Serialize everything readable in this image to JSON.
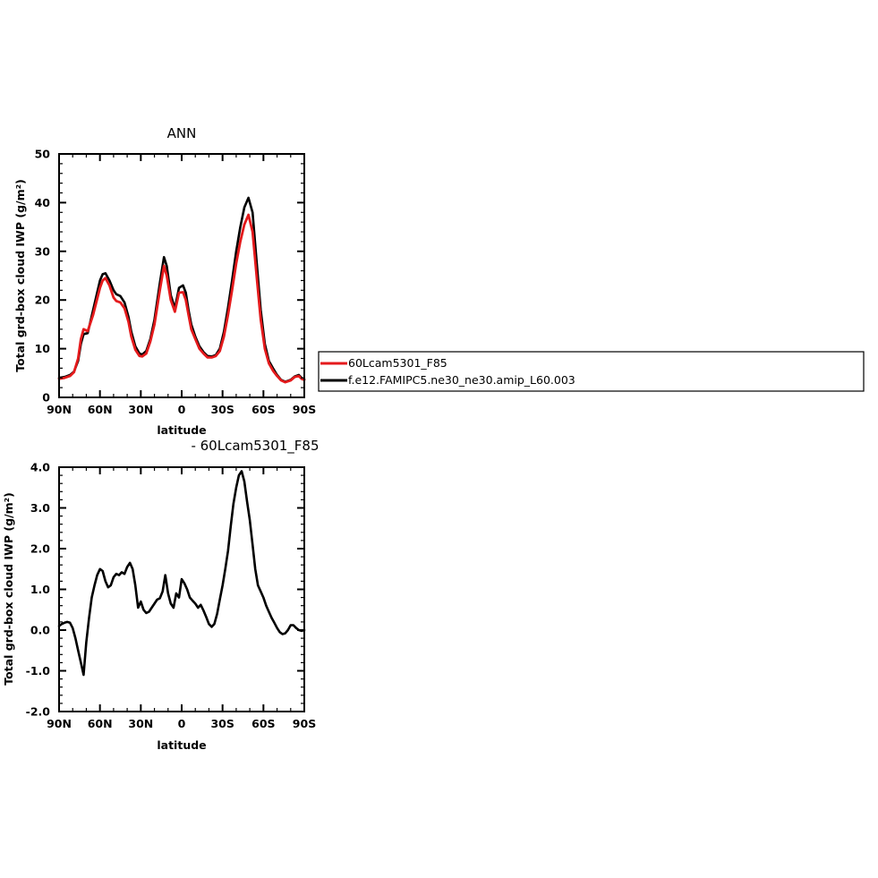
{
  "chart_data": [
    {
      "type": "line",
      "title": "ANN",
      "xlabel": "latitude",
      "ylabel": "Total grd-box cloud IWP (g/m²)",
      "xlim": [
        90,
        -90
      ],
      "ylim": [
        0,
        50
      ],
      "xticks": [
        90,
        60,
        30,
        0,
        -30,
        -60,
        -90
      ],
      "xticklabels": [
        "90N",
        "60N",
        "30N",
        "0",
        "30S",
        "60S",
        "90S"
      ],
      "yticks": [
        0,
        10,
        20,
        30,
        40,
        50
      ],
      "yticklabels": [
        "0",
        "10",
        "20",
        "30",
        "40",
        "50"
      ],
      "legend_position": "right",
      "series": [
        {
          "name": "60Lcam5301_F85",
          "color": "#e41a1c",
          "x": [
            90,
            86,
            82,
            79,
            76,
            74,
            72,
            69,
            65,
            60,
            58,
            56,
            53,
            50,
            48,
            45,
            42,
            39,
            37,
            34,
            31,
            29,
            26,
            23,
            20,
            16,
            13,
            11,
            8,
            5,
            2,
            -1,
            -3,
            -5,
            -7,
            -10,
            -13,
            -16,
            -19,
            -22,
            -25,
            -28,
            -31,
            -34,
            -37,
            -40,
            -43,
            -46,
            -49,
            -52,
            -55,
            -58,
            -61,
            -64,
            -67,
            -70,
            -73,
            -76,
            -80,
            -83,
            -86,
            -88,
            -90
          ],
          "y": [
            3.8,
            4.0,
            4.4,
            5.2,
            8,
            12.0,
            14.0,
            13.6,
            17,
            22.5,
            24.0,
            24.5,
            23,
            20.5,
            19.8,
            19.5,
            18.3,
            15.5,
            12.5,
            9.8,
            8.5,
            8.4,
            9,
            11.5,
            15.0,
            22.0,
            27.0,
            25,
            20,
            17.6,
            21.5,
            21.6,
            20,
            17.0,
            14.0,
            12,
            10.0,
            9.0,
            8.2,
            8.2,
            8.5,
            9.5,
            12.5,
            17.0,
            22,
            27.5,
            32,
            35.5,
            37.5,
            34,
            25,
            16,
            10,
            7.0,
            5.5,
            4.4,
            3.5,
            3.1,
            3.5,
            4.2,
            4.4,
            3.8,
            3.6
          ]
        },
        {
          "name": "f.e12.FAMIPC5.ne30_ne30.amip_L60.003",
          "color": "#000000",
          "x": [
            90,
            86,
            82,
            79,
            76,
            74,
            72,
            69,
            65,
            60,
            58,
            56,
            53,
            50,
            48,
            45,
            42,
            39,
            37,
            34,
            31,
            29,
            26,
            23,
            20,
            16,
            13,
            11,
            8,
            5,
            2,
            -1,
            -3,
            -5,
            -7,
            -10,
            -13,
            -16,
            -19,
            -22,
            -25,
            -28,
            -31,
            -34,
            -37,
            -40,
            -43,
            -46,
            -49,
            -52,
            -55,
            -58,
            -61,
            -64,
            -67,
            -70,
            -73,
            -76,
            -80,
            -83,
            -86,
            -88,
            -90
          ],
          "y": [
            4.0,
            4.2,
            4.6,
            5.3,
            7.5,
            11.0,
            13.0,
            13.2,
            18,
            24.0,
            25.3,
            25.5,
            24,
            22.0,
            21.2,
            20.8,
            19.5,
            16.5,
            13.5,
            10.5,
            9.0,
            8.8,
            9.5,
            12.0,
            16.0,
            23.5,
            28.8,
            27,
            21,
            18.3,
            22.5,
            23.0,
            21.5,
            18.0,
            15.0,
            12.5,
            10.5,
            9.3,
            8.5,
            8.4,
            8.7,
            10.0,
            13.5,
            18.5,
            24,
            30.0,
            35,
            39.0,
            41.0,
            38,
            28,
            18,
            11,
            7.5,
            6.0,
            4.6,
            3.6,
            3.2,
            3.6,
            4.3,
            4.6,
            4.0,
            3.7
          ]
        }
      ]
    },
    {
      "type": "line",
      "title": "- 60Lcam5301_F85",
      "xlabel": "latitude",
      "ylabel": "Total grd-box cloud IWP (g/m²)",
      "xlim": [
        90,
        -90
      ],
      "ylim": [
        -2.0,
        4.0
      ],
      "xticks": [
        90,
        60,
        30,
        0,
        -30,
        -60,
        -90
      ],
      "xticklabels": [
        "90N",
        "60N",
        "30N",
        "0",
        "30S",
        "60S",
        "90S"
      ],
      "yticks": [
        -2.0,
        -1.0,
        0.0,
        1.0,
        2.0,
        3.0,
        4.0
      ],
      "yticklabels": [
        "-2.0",
        "-1.0",
        "0.0",
        "1.0",
        "2.0",
        "3.0",
        "4.0"
      ],
      "series": [
        {
          "color": "#000000",
          "x": [
            90,
            88,
            86,
            84,
            82,
            80,
            78,
            76,
            74,
            72,
            70,
            68,
            66,
            64,
            62,
            60,
            58,
            56,
            54,
            52,
            50,
            48,
            46,
            44,
            42,
            40,
            38,
            36,
            34,
            32,
            30,
            28,
            26,
            24,
            22,
            20,
            18,
            16,
            14,
            12,
            10,
            8,
            6,
            4,
            2,
            0,
            -2,
            -4,
            -6,
            -8,
            -10,
            -12,
            -14,
            -16,
            -18,
            -20,
            -22,
            -24,
            -26,
            -28,
            -30,
            -32,
            -34,
            -36,
            -38,
            -40,
            -42,
            -44,
            -46,
            -48,
            -50,
            -52,
            -54,
            -56,
            -58,
            -60,
            -62,
            -64,
            -66,
            -68,
            -70,
            -72,
            -74,
            -76,
            -78,
            -80,
            -82,
            -84,
            -86,
            -88,
            -90
          ],
          "y": [
            0.1,
            0.15,
            0.18,
            0.2,
            0.18,
            0.05,
            -0.2,
            -0.5,
            -0.8,
            -1.1,
            -0.3,
            0.3,
            0.8,
            1.1,
            1.35,
            1.5,
            1.45,
            1.2,
            1.05,
            1.1,
            1.3,
            1.38,
            1.35,
            1.42,
            1.38,
            1.55,
            1.65,
            1.5,
            1.1,
            0.55,
            0.7,
            0.5,
            0.42,
            0.45,
            0.55,
            0.65,
            0.75,
            0.78,
            0.95,
            1.35,
            0.9,
            0.65,
            0.55,
            0.9,
            0.8,
            1.25,
            1.15,
            1.0,
            0.8,
            0.72,
            0.65,
            0.55,
            0.62,
            0.48,
            0.32,
            0.15,
            0.08,
            0.15,
            0.4,
            0.75,
            1.1,
            1.5,
            1.95,
            2.55,
            3.1,
            3.5,
            3.8,
            3.9,
            3.65,
            3.15,
            2.7,
            2.1,
            1.5,
            1.1,
            0.95,
            0.8,
            0.6,
            0.45,
            0.3,
            0.18,
            0.05,
            -0.05,
            -0.1,
            -0.08,
            0.0,
            0.12,
            0.12,
            0.05,
            0.0,
            -0.02,
            0.0
          ]
        }
      ]
    }
  ]
}
